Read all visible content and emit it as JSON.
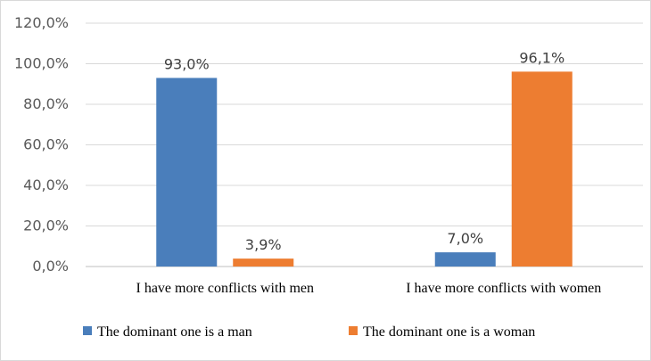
{
  "chart_data": {
    "type": "bar",
    "categories": [
      "I have more conflicts with men",
      "I have more conflicts with women"
    ],
    "series": [
      {
        "name": "The dominant one is a man",
        "values": [
          93.0,
          7.0
        ],
        "labels": [
          "93,0%",
          "7,0%"
        ],
        "color": "#4a7ebb"
      },
      {
        "name": "The dominant one is a woman",
        "values": [
          3.9,
          96.1
        ],
        "labels": [
          "3,9%",
          "96,1%"
        ],
        "color": "#ed7d31"
      }
    ],
    "y_ticks": [
      {
        "value": 0,
        "label": "0,0%"
      },
      {
        "value": 20,
        "label": "20,0%"
      },
      {
        "value": 40,
        "label": "40,0%"
      },
      {
        "value": 60,
        "label": "60,0%"
      },
      {
        "value": 80,
        "label": "80,0%"
      },
      {
        "value": 100,
        "label": "100,0%"
      },
      {
        "value": 120,
        "label": "120,0%"
      }
    ],
    "ylim": [
      0,
      120
    ],
    "grid": true,
    "legend_position": "bottom",
    "title": "",
    "xlabel": "",
    "ylabel": ""
  }
}
